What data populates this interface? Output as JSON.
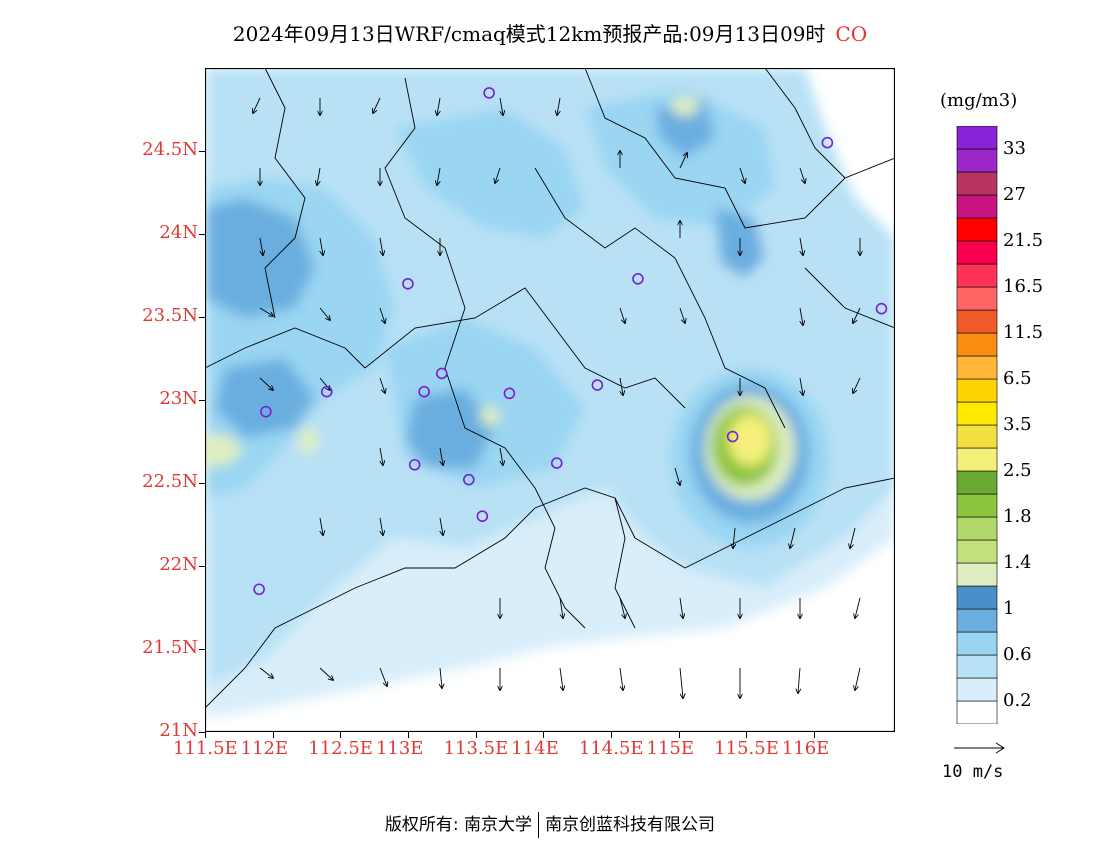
{
  "title": {
    "text": "2024年09月13日WRF/cmaq模式12km预报产品:09月13日09时",
    "species": "CO"
  },
  "map": {
    "lon_range": [
      111.5,
      116.6
    ],
    "lat_range": [
      21.0,
      25.0
    ],
    "lon_ticks": [
      "111.5E",
      "112E",
      "112.5E",
      "113E",
      "113.5E",
      "114E",
      "114.5E",
      "115E",
      "115.5E",
      "116E"
    ],
    "lon_tick_values": [
      111.5,
      112.0,
      112.5,
      113.0,
      113.5,
      114.0,
      114.5,
      115.0,
      115.5,
      116.0
    ],
    "lat_ticks": [
      "24.5N",
      "24N",
      "23.5N",
      "23N",
      "22.5N",
      "22N",
      "21.5N",
      "21N"
    ],
    "lat_tick_values": [
      24.5,
      24.0,
      23.5,
      23.0,
      22.5,
      22.0,
      21.5,
      21.0
    ],
    "stations": [
      [
        113.6,
        24.85
      ],
      [
        116.1,
        24.55
      ],
      [
        113.0,
        23.7
      ],
      [
        114.7,
        23.73
      ],
      [
        116.5,
        23.55
      ],
      [
        112.4,
        23.05
      ],
      [
        111.95,
        22.93
      ],
      [
        113.25,
        23.16
      ],
      [
        113.12,
        23.05
      ],
      [
        113.75,
        23.04
      ],
      [
        114.4,
        23.09
      ],
      [
        115.4,
        22.78
      ],
      [
        113.05,
        22.61
      ],
      [
        113.45,
        22.52
      ],
      [
        114.1,
        22.62
      ],
      [
        113.55,
        22.3
      ],
      [
        111.9,
        21.86
      ]
    ]
  },
  "colorbar": {
    "unit": "(mg/m3)",
    "colors": [
      "#ffffff",
      "#d8eefa",
      "#b8e1f6",
      "#9ad5f2",
      "#6aaee0",
      "#4a90c8",
      "#dfeec0",
      "#c3e07c",
      "#b0d868",
      "#8cc43e",
      "#6ba832",
      "#f4f07a",
      "#f2e040",
      "#ffe800",
      "#ffd400",
      "#ffb638",
      "#fb8c12",
      "#f25a2a",
      "#ff6666",
      "#ff3355",
      "#f8004f",
      "#ff0000",
      "#c81480",
      "#b83462",
      "#9a28c8",
      "#8a22d8"
    ],
    "labels": [
      "0.2",
      "0.6",
      "1",
      "1.4",
      "1.8",
      "2.5",
      "3.5",
      "6.5",
      "11.5",
      "16.5",
      "21.5",
      "27",
      "33"
    ]
  },
  "wind_ref": "10 m/s",
  "footer": {
    "left": "版权所有: 南京大学",
    "right": "南京创蓝科技有限公司"
  }
}
